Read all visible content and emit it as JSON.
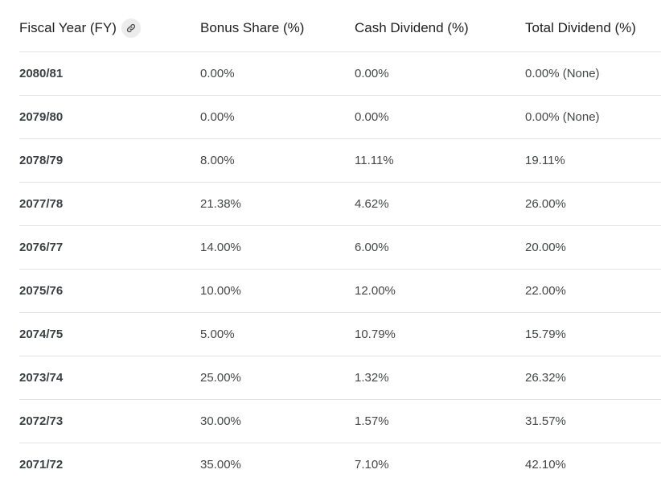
{
  "table": {
    "headers": {
      "fiscal_year": "Fiscal Year (FY)",
      "bonus_share": "Bonus Share (%)",
      "cash_dividend": "Cash Dividend (%)",
      "total_dividend": "Total Dividend (%)"
    },
    "rows": [
      {
        "fy": "2080/81",
        "bonus": "0.00%",
        "cash": "0.00%",
        "total": "0.00% (None)"
      },
      {
        "fy": "2079/80",
        "bonus": "0.00%",
        "cash": "0.00%",
        "total": "0.00% (None)"
      },
      {
        "fy": "2078/79",
        "bonus": "8.00%",
        "cash": "11.11%",
        "total": "19.11%"
      },
      {
        "fy": "2077/78",
        "bonus": "21.38%",
        "cash": "4.62%",
        "total": "26.00%"
      },
      {
        "fy": "2076/77",
        "bonus": "14.00%",
        "cash": "6.00%",
        "total": "20.00%"
      },
      {
        "fy": "2075/76",
        "bonus": "10.00%",
        "cash": "12.00%",
        "total": "22.00%"
      },
      {
        "fy": "2074/75",
        "bonus": "5.00%",
        "cash": "10.79%",
        "total": "15.79%"
      },
      {
        "fy": "2073/74",
        "bonus": "25.00%",
        "cash": "1.32%",
        "total": "26.32%"
      },
      {
        "fy": "2072/73",
        "bonus": "30.00%",
        "cash": "1.57%",
        "total": "31.57%"
      },
      {
        "fy": "2071/72",
        "bonus": "35.00%",
        "cash": "7.10%",
        "total": "42.10%"
      }
    ]
  },
  "icons": {
    "header_link": "link-icon"
  },
  "colors": {
    "border": "#e3e3e3",
    "text": "#444746",
    "header_text": "#1f1f1f",
    "chip_bg": "#ececec"
  }
}
